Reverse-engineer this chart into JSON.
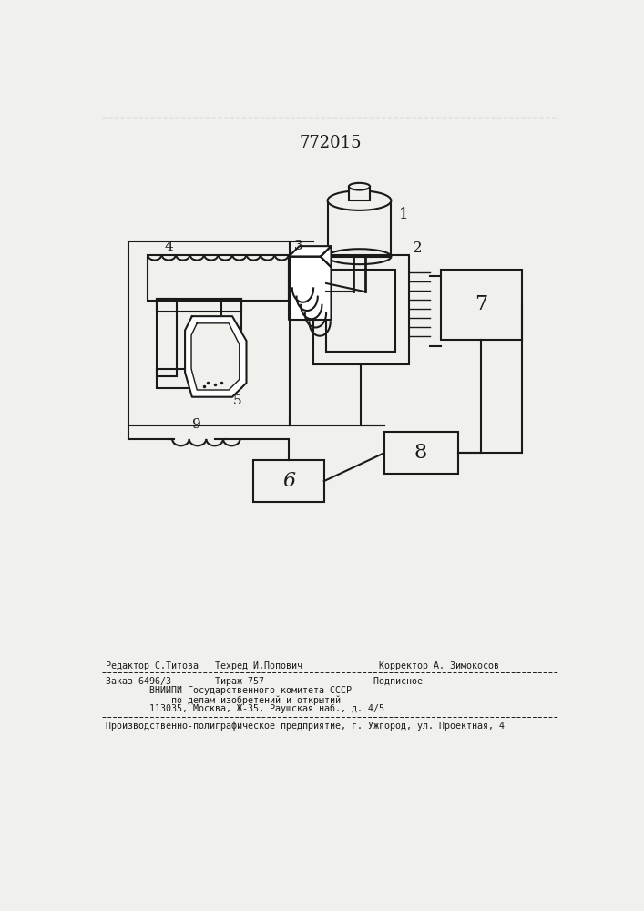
{
  "title": "772015",
  "bg_color": "#f0f0ec",
  "line_color": "#1a1a1a",
  "footer_line1": "Редактор С.Титова   Техред И.Попович              Корректор А. Зимокосов",
  "footer_line2": "Заказ 6496/3        Тираж 757                    Подписное",
  "footer_line3": "        ВНИИПИ Государственного комитета СССР",
  "footer_line4": "            по делам изобретений и открытий",
  "footer_line5": "        113035, Москва, Ж-35, Раушская наб., д. 4/5",
  "footer_line6": "Производственно-полиграфическое предприятие, г. Ужгород, ул. Проектная, 4"
}
